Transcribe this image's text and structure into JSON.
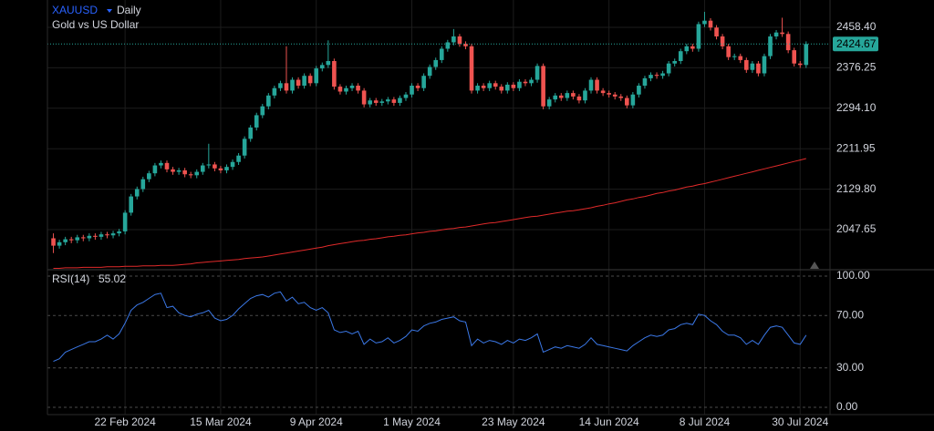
{
  "chart_data": [
    {
      "type": "candlestick",
      "title": "XAUUSD",
      "interval": "Daily",
      "subtitle": "Gold vs US Dollar",
      "up_color": "#26a69a",
      "down_color": "#ef5350",
      "candles": {
        "open": [
          2030,
          2015,
          2022,
          2028,
          2026,
          2032,
          2030,
          2035,
          2033,
          2038,
          2036,
          2040,
          2044,
          2082,
          2115,
          2130,
          2150,
          2162,
          2178,
          2183,
          2170,
          2165,
          2168,
          2160,
          2158,
          2165,
          2178,
          2180,
          2172,
          2168,
          2175,
          2185,
          2198,
          2232,
          2255,
          2280,
          2298,
          2320,
          2335,
          2345,
          2330,
          2352,
          2340,
          2360,
          2345,
          2375,
          2382,
          2390,
          2338,
          2328,
          2335,
          2340,
          2330,
          2302,
          2310,
          2305,
          2308,
          2312,
          2305,
          2315,
          2322,
          2340,
          2335,
          2360,
          2378,
          2392,
          2415,
          2428,
          2440,
          2425,
          2420,
          2330,
          2340,
          2335,
          2345,
          2338,
          2330,
          2342,
          2335,
          2348,
          2345,
          2352,
          2380,
          2298,
          2312,
          2320,
          2315,
          2325,
          2318,
          2310,
          2330,
          2352,
          2330,
          2325,
          2322,
          2318,
          2315,
          2300,
          2322,
          2340,
          2355,
          2362,
          2360,
          2365,
          2385,
          2390,
          2410,
          2420,
          2415,
          2465,
          2472,
          2458,
          2440,
          2420,
          2398,
          2400,
          2392,
          2372,
          2385,
          2365,
          2400,
          2440,
          2448,
          2445,
          2412,
          2385,
          2382
        ],
        "high": [
          2040,
          2027,
          2033,
          2033,
          2037,
          2037,
          2040,
          2040,
          2043,
          2043,
          2045,
          2049,
          2087,
          2120,
          2135,
          2155,
          2167,
          2183,
          2188,
          2188,
          2175,
          2173,
          2173,
          2165,
          2170,
          2183,
          2222,
          2185,
          2177,
          2180,
          2190,
          2203,
          2237,
          2260,
          2285,
          2303,
          2325,
          2340,
          2350,
          2420,
          2357,
          2357,
          2365,
          2365,
          2380,
          2387,
          2432,
          2395,
          2343,
          2340,
          2345,
          2345,
          2335,
          2315,
          2315,
          2313,
          2317,
          2317,
          2320,
          2327,
          2345,
          2345,
          2365,
          2383,
          2397,
          2420,
          2433,
          2455,
          2445,
          2430,
          2425,
          2345,
          2345,
          2350,
          2350,
          2343,
          2347,
          2347,
          2353,
          2353,
          2357,
          2385,
          2385,
          2317,
          2325,
          2325,
          2330,
          2330,
          2323,
          2335,
          2357,
          2357,
          2335,
          2330,
          2327,
          2323,
          2320,
          2327,
          2345,
          2360,
          2367,
          2367,
          2370,
          2390,
          2395,
          2415,
          2425,
          2425,
          2470,
          2490,
          2477,
          2463,
          2445,
          2425,
          2405,
          2405,
          2397,
          2390,
          2390,
          2405,
          2445,
          2453,
          2478,
          2450,
          2417,
          2390,
          2430
        ],
        "low": [
          2000,
          2009,
          2016,
          2020,
          2020,
          2024,
          2024,
          2027,
          2027,
          2030,
          2030,
          2034,
          2038,
          2076,
          2109,
          2124,
          2144,
          2156,
          2172,
          2164,
          2159,
          2159,
          2154,
          2152,
          2152,
          2159,
          2172,
          2166,
          2162,
          2162,
          2169,
          2179,
          2192,
          2226,
          2249,
          2274,
          2292,
          2314,
          2329,
          2324,
          2324,
          2334,
          2334,
          2339,
          2339,
          2369,
          2376,
          2332,
          2322,
          2322,
          2329,
          2324,
          2296,
          2296,
          2299,
          2299,
          2302,
          2299,
          2299,
          2309,
          2316,
          2329,
          2329,
          2354,
          2372,
          2386,
          2409,
          2422,
          2419,
          2414,
          2324,
          2324,
          2329,
          2329,
          2332,
          2324,
          2324,
          2329,
          2329,
          2339,
          2339,
          2346,
          2292,
          2292,
          2306,
          2309,
          2309,
          2312,
          2304,
          2304,
          2324,
          2324,
          2319,
          2316,
          2312,
          2309,
          2294,
          2294,
          2316,
          2334,
          2349,
          2354,
          2354,
          2359,
          2379,
          2384,
          2404,
          2409,
          2409,
          2459,
          2452,
          2434,
          2414,
          2392,
          2392,
          2386,
          2366,
          2366,
          2359,
          2359,
          2394,
          2434,
          2439,
          2406,
          2379,
          2376,
          2376
        ],
        "close": [
          2015,
          2022,
          2028,
          2026,
          2032,
          2030,
          2035,
          2033,
          2038,
          2036,
          2040,
          2044,
          2082,
          2115,
          2130,
          2150,
          2162,
          2178,
          2183,
          2170,
          2165,
          2168,
          2160,
          2158,
          2165,
          2178,
          2180,
          2172,
          2168,
          2175,
          2185,
          2198,
          2232,
          2255,
          2280,
          2298,
          2320,
          2335,
          2345,
          2330,
          2352,
          2340,
          2360,
          2345,
          2375,
          2382,
          2390,
          2338,
          2328,
          2335,
          2340,
          2330,
          2302,
          2310,
          2305,
          2308,
          2312,
          2305,
          2315,
          2322,
          2340,
          2335,
          2360,
          2378,
          2392,
          2415,
          2428,
          2440,
          2425,
          2420,
          2330,
          2340,
          2335,
          2345,
          2338,
          2330,
          2342,
          2335,
          2348,
          2345,
          2352,
          2380,
          2298,
          2312,
          2320,
          2315,
          2325,
          2318,
          2310,
          2330,
          2352,
          2330,
          2325,
          2322,
          2318,
          2315,
          2300,
          2322,
          2340,
          2355,
          2362,
          2360,
          2365,
          2385,
          2390,
          2410,
          2420,
          2415,
          2465,
          2472,
          2458,
          2440,
          2420,
          2398,
          2400,
          2392,
          2372,
          2385,
          2365,
          2400,
          2440,
          2448,
          2445,
          2412,
          2385,
          2382,
          2424.67
        ]
      },
      "ma": {
        "color": "#e02a2a",
        "values": [
          1969,
          1969,
          1970,
          1970,
          1970,
          1971,
          1971,
          1971,
          1971,
          1972,
          1972,
          1972,
          1973,
          1973,
          1973,
          1974,
          1974,
          1974,
          1975,
          1975,
          1975,
          1976,
          1977,
          1978,
          1980,
          1981,
          1982,
          1983,
          1984,
          1985,
          1986,
          1987,
          1989,
          1990,
          1991,
          1992,
          1994,
          1996,
          1998,
          2000,
          2002,
          2004,
          2006,
          2008,
          2010,
          2012,
          2015,
          2017,
          2019,
          2021,
          2023,
          2025,
          2026,
          2028,
          2029,
          2031,
          2033,
          2034,
          2036,
          2037,
          2039,
          2041,
          2042,
          2044,
          2045,
          2047,
          2049,
          2050,
          2052,
          2053,
          2055,
          2057,
          2059,
          2061,
          2062,
          2064,
          2066,
          2068,
          2070,
          2072,
          2074,
          2075,
          2077,
          2079,
          2081,
          2083,
          2085,
          2086,
          2088,
          2090,
          2092,
          2095,
          2097,
          2100,
          2102,
          2105,
          2108,
          2110,
          2113,
          2115,
          2118,
          2121,
          2123,
          2126,
          2128,
          2131,
          2134,
          2136,
          2139,
          2141,
          2144,
          2147,
          2150,
          2153,
          2156,
          2159,
          2162,
          2165,
          2168,
          2171,
          2174,
          2177,
          2180,
          2183,
          2186,
          2189,
          2192
        ]
      },
      "xlim": [
        -1,
        130
      ],
      "xticks": [
        {
          "value": 12,
          "label": "22 Feb 2024"
        },
        {
          "value": 28,
          "label": "15 Mar 2024"
        },
        {
          "value": 44,
          "label": "9 Apr 2024"
        },
        {
          "value": 60,
          "label": "1 May 2024"
        },
        {
          "value": 77,
          "label": "23 May 2024"
        },
        {
          "value": 93,
          "label": "14 Jun 2024"
        },
        {
          "value": 109,
          "label": "8 Jul 2024"
        },
        {
          "value": 125,
          "label": "30 Jul 2024"
        }
      ],
      "ylim": [
        1968,
        2514
      ],
      "yticks": [
        {
          "value": 2458.4,
          "label": "2458.40"
        },
        2376.25,
        {
          "value": 2294.1,
          "label": "2294.10"
        },
        2211.95,
        {
          "value": 2129.8,
          "label": "2129.80"
        },
        2047.65
      ],
      "grid": true,
      "last_price_color": "#26a69a"
    },
    {
      "type": "line",
      "title": "RSI(14)",
      "series": [
        {
          "color": "#3b78e7",
          "values": [
            35,
            37,
            42,
            44,
            46,
            48,
            50,
            50,
            52,
            55,
            52,
            56,
            64,
            74,
            78,
            80,
            83,
            86,
            87,
            76,
            77,
            72,
            70,
            69,
            71,
            72,
            74,
            68,
            66,
            67,
            70,
            75,
            79,
            83,
            85,
            86,
            84,
            87,
            88,
            81,
            84,
            79,
            80,
            76,
            74,
            76,
            72,
            59,
            57,
            58,
            56,
            58,
            48,
            52,
            49,
            50,
            53,
            49,
            51,
            54,
            59,
            58,
            62,
            64,
            65,
            67,
            68,
            69,
            66,
            65,
            47,
            52,
            49,
            51,
            50,
            48,
            51,
            49,
            52,
            51,
            53,
            56,
            42,
            44,
            46,
            45,
            47,
            46,
            45,
            48,
            53,
            48,
            47,
            46,
            45,
            44,
            43,
            47,
            50,
            53,
            55,
            54,
            55,
            59,
            60,
            63,
            64,
            63,
            71,
            70,
            66,
            63,
            58,
            55,
            55,
            53,
            48,
            51,
            48,
            55,
            61,
            62,
            61,
            55,
            49,
            48,
            55.02
          ]
        }
      ],
      "ylim": [
        -5.6,
        104.2
      ],
      "yticks": [
        {
          "value": 100,
          "label": "100.00"
        },
        {
          "value": 70,
          "label": "70.00"
        },
        {
          "value": 30,
          "label": "30.00"
        },
        {
          "value": 0,
          "label": "0.00"
        }
      ],
      "grid": "dashed"
    }
  ]
}
